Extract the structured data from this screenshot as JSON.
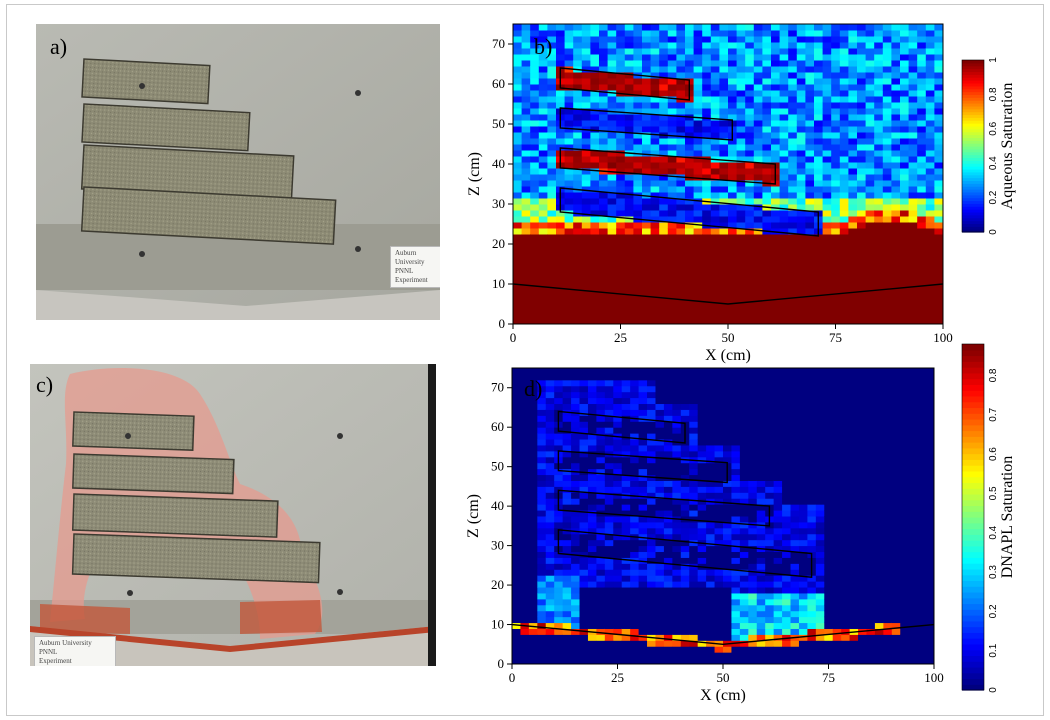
{
  "panels": {
    "a": {
      "letter": "a)",
      "label_lines": [
        "Auburn University",
        "PNNL",
        "Experiment"
      ]
    },
    "b": {
      "letter": "b)",
      "xlabel": "X (cm)",
      "ylabel": "Z (cm)",
      "colorbar_label": "Aqueous Saturation",
      "colorbar_ticks": [
        "0",
        "0.2",
        "0.4",
        "0.6",
        "0.8",
        "1"
      ],
      "x_ticks": [
        "0",
        "25",
        "50",
        "75",
        "100"
      ],
      "y_ticks": [
        "0",
        "10",
        "20",
        "30",
        "40",
        "50",
        "60",
        "70"
      ]
    },
    "c": {
      "letter": "c)",
      "label_lines": [
        "Auburn University",
        "PNNL",
        "Experiment"
      ]
    },
    "d": {
      "letter": "d)",
      "xlabel": "X (cm)",
      "ylabel": "Z (cm)",
      "colorbar_label": "DNAPL Saturation",
      "colorbar_ticks": [
        "0",
        "0.1",
        "0.2",
        "0.3",
        "0.4",
        "0.5",
        "0.6",
        "0.7",
        "0.8"
      ],
      "x_ticks": [
        "0",
        "25",
        "50",
        "75",
        "100"
      ],
      "y_ticks": [
        "0",
        "10",
        "20",
        "30",
        "40",
        "50",
        "60",
        "70"
      ]
    }
  },
  "chart_data": [
    {
      "type": "heatmap",
      "panel": "b",
      "xlabel": "X (cm)",
      "ylabel": "Z (cm)",
      "xlim": [
        0,
        100
      ],
      "ylim": [
        0,
        75
      ],
      "colorbar": {
        "label": "Aqueous Saturation",
        "range": [
          0,
          1
        ]
      },
      "description_values": {
        "water_table_z_cm": 22,
        "capillary_fringe_z_cm": [
          22,
          32
        ],
        "lenses_saturation": [
          1,
          0.1,
          1,
          0.1
        ]
      }
    },
    {
      "type": "heatmap",
      "panel": "d",
      "xlabel": "X (cm)",
      "ylabel": "Z (cm)",
      "xlim": [
        0,
        100
      ],
      "ylim": [
        0,
        75
      ],
      "colorbar": {
        "label": "DNAPL Saturation",
        "range": [
          0,
          0.88
        ]
      }
    }
  ]
}
